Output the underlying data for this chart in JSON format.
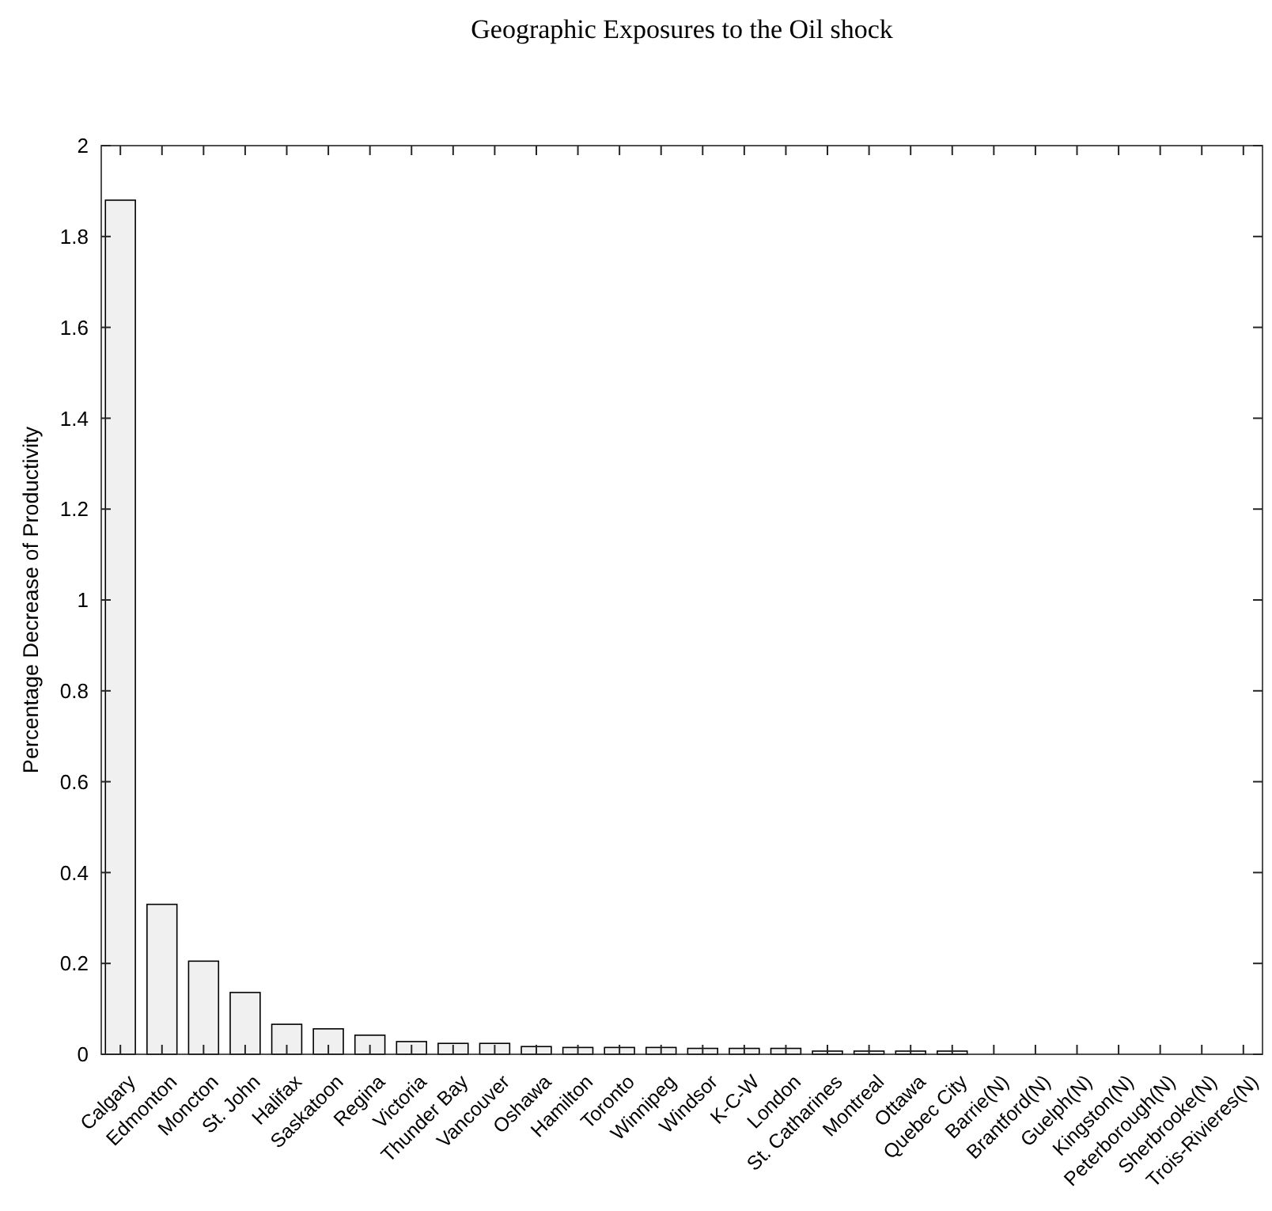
{
  "chart_data": {
    "type": "bar",
    "title": "Geographic Exposures to the Oil shock",
    "ylabel": "Percentage Decrease of Productivity",
    "categories": [
      "Calgary",
      "Edmonton",
      "Moncton",
      "St. John",
      "Halifax",
      "Saskatoon",
      "Regina",
      "Victoria",
      "Thunder Bay",
      "Vancouver",
      "Oshawa",
      "Hamilton",
      "Toronto",
      "Winnipeg",
      "Windsor",
      "K-C-W",
      "London",
      "St. Catharines",
      "Montreal",
      "Ottawa",
      "Quebec City",
      "Barrie(N)",
      "Brantford(N)",
      "Guelph(N)",
      "Kingston(N)",
      "Peterborough(N)",
      "Sherbrooke(N)",
      "Trois-Rivieres(N)"
    ],
    "values": [
      1.88,
      0.33,
      0.205,
      0.136,
      0.066,
      0.056,
      0.042,
      0.028,
      0.024,
      0.024,
      0.017,
      0.015,
      0.015,
      0.015,
      0.013,
      0.013,
      0.013,
      0.007,
      0.007,
      0.007,
      0.007,
      0,
      0,
      0,
      0,
      0,
      0,
      0
    ],
    "color": "#f0f0f0",
    "ylim": [
      0,
      2
    ],
    "yticks": [
      0,
      0.2,
      0.4,
      0.6,
      0.8,
      1,
      1.2,
      1.4,
      1.6,
      1.8,
      2
    ]
  }
}
